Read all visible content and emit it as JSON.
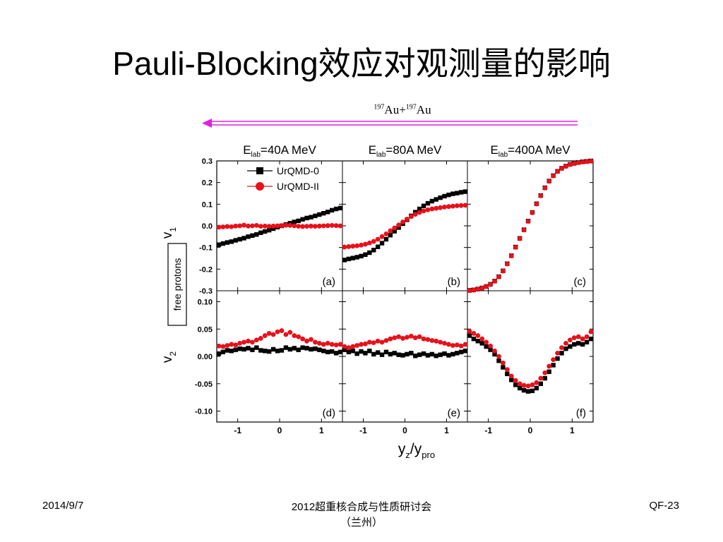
{
  "slide": {
    "title": "Pauli-Blocking效应对观测量的影响",
    "reaction": {
      "a1": "197",
      "n1": "Au",
      "plus": "+",
      "a2": "197",
      "n2": "Au"
    },
    "footer_left": "2014/9/7",
    "footer_center_line1": "2012超重核合成与性质研讨会",
    "footer_center_line2": "（兰州）",
    "footer_right": "QF-23"
  },
  "colors": {
    "urqmd_0": "#000000",
    "urqmd_ii": "#e8101a",
    "arrow": "#e020e0"
  },
  "chart_data": {
    "type": "scatter",
    "column_titles": [
      {
        "pre": "E",
        "sub": "lab",
        "post": "=40A MeV"
      },
      {
        "pre": "E",
        "sub": "lab",
        "post": "=80A MeV"
      },
      {
        "pre": "E",
        "sub": "lab",
        "post": "=400A MeV"
      }
    ],
    "xlabel": {
      "main": "y",
      "sub1": "z",
      "mid": "/y",
      "sub2": "pro"
    },
    "ylabel_top": {
      "main": "v",
      "sub": "1"
    },
    "ylabel_bottom": {
      "main": "v",
      "sub": "2"
    },
    "side_label": "free protons",
    "legend": [
      "UrQMD-0",
      "UrQMD-II"
    ],
    "xlim": [
      -1.5,
      1.5
    ],
    "xticks": [
      "-1",
      "0",
      "1"
    ],
    "xtick_values": [
      -1,
      0,
      1
    ],
    "top_ylim": [
      -0.3,
      0.3
    ],
    "top_yticks": [
      "0.3",
      "0.2",
      "0.1",
      "0.0",
      "-0.1",
      "-0.2",
      "-0.3"
    ],
    "top_ytick_values": [
      0.3,
      0.2,
      0.1,
      0.0,
      -0.1,
      -0.2,
      -0.3
    ],
    "bottom_ylim": [
      -0.12,
      0.12
    ],
    "bottom_yticks": [
      "0.10",
      "0.05",
      "0.00",
      "-0.05",
      "-0.10"
    ],
    "bottom_ytick_values": [
      0.1,
      0.05,
      0.0,
      -0.05,
      -0.1
    ],
    "x": [
      -1.45,
      -1.35,
      -1.25,
      -1.15,
      -1.05,
      -0.95,
      -0.85,
      -0.75,
      -0.65,
      -0.55,
      -0.45,
      -0.35,
      -0.25,
      -0.15,
      -0.05,
      0.05,
      0.15,
      0.25,
      0.35,
      0.45,
      0.55,
      0.65,
      0.75,
      0.85,
      0.95,
      1.05,
      1.15,
      1.25,
      1.35,
      1.45
    ],
    "panels": [
      {
        "label": "(a)",
        "row": "top",
        "col": 0,
        "series": [
          {
            "name": "UrQMD-0",
            "values": [
              -0.087,
              -0.082,
              -0.077,
              -0.073,
              -0.067,
              -0.062,
              -0.057,
              -0.05,
              -0.045,
              -0.04,
              -0.032,
              -0.026,
              -0.02,
              -0.013,
              -0.006,
              0.0,
              0.006,
              0.012,
              0.018,
              0.023,
              0.03,
              0.036,
              0.04,
              0.046,
              0.052,
              0.058,
              0.064,
              0.072,
              0.078,
              0.082
            ]
          },
          {
            "name": "UrQMD-II",
            "values": [
              -0.006,
              -0.005,
              -0.003,
              -0.004,
              -0.001,
              0.0,
              0.003,
              -0.001,
              0.0,
              0.002,
              -0.002,
              -0.001,
              -0.002,
              -0.001,
              0.0,
              0.001,
              0.003,
              0.002,
              0.0,
              -0.002,
              -0.003,
              -0.002,
              -0.001,
              -0.002,
              -0.001,
              0.0,
              0.001,
              0.002,
              0.001,
              0.0
            ]
          }
        ]
      },
      {
        "label": "(b)",
        "row": "top",
        "col": 1,
        "series": [
          {
            "name": "UrQMD-0",
            "values": [
              -0.158,
              -0.153,
              -0.149,
              -0.145,
              -0.14,
              -0.133,
              -0.124,
              -0.112,
              -0.097,
              -0.08,
              -0.062,
              -0.043,
              -0.025,
              -0.008,
              0.01,
              0.028,
              0.046,
              0.063,
              0.078,
              0.092,
              0.104,
              0.114,
              0.122,
              0.13,
              0.137,
              0.143,
              0.148,
              0.151,
              0.155,
              0.158
            ]
          },
          {
            "name": "UrQMD-II",
            "values": [
              -0.098,
              -0.096,
              -0.094,
              -0.092,
              -0.089,
              -0.085,
              -0.079,
              -0.072,
              -0.062,
              -0.05,
              -0.037,
              -0.023,
              -0.01,
              0.004,
              0.018,
              0.031,
              0.043,
              0.053,
              0.062,
              0.069,
              0.074,
              0.078,
              0.081,
              0.084,
              0.087,
              0.089,
              0.091,
              0.093,
              0.094,
              0.095
            ]
          }
        ]
      },
      {
        "label": "(c)",
        "row": "top",
        "col": 2,
        "series": [
          {
            "name": "UrQMD-0",
            "values": [
              -0.298,
              -0.296,
              -0.292,
              -0.287,
              -0.28,
              -0.27,
              -0.255,
              -0.235,
              -0.208,
              -0.175,
              -0.138,
              -0.098,
              -0.058,
              -0.018,
              0.022,
              0.062,
              0.102,
              0.14,
              0.176,
              0.207,
              0.232,
              0.252,
              0.266,
              0.276,
              0.284,
              0.289,
              0.293,
              0.296,
              0.298,
              0.3
            ]
          },
          {
            "name": "UrQMD-II",
            "values": [
              -0.299,
              -0.297,
              -0.293,
              -0.288,
              -0.281,
              -0.271,
              -0.256,
              -0.236,
              -0.209,
              -0.176,
              -0.139,
              -0.099,
              -0.059,
              -0.019,
              0.021,
              0.061,
              0.101,
              0.139,
              0.175,
              0.206,
              0.231,
              0.251,
              0.265,
              0.275,
              0.283,
              0.288,
              0.292,
              0.295,
              0.297,
              0.299
            ]
          }
        ]
      },
      {
        "label": "(d)",
        "row": "bottom",
        "col": 0,
        "series": [
          {
            "name": "UrQMD-0",
            "values": [
              0.005,
              0.008,
              0.011,
              0.01,
              0.012,
              0.014,
              0.013,
              0.015,
              0.012,
              0.016,
              0.011,
              0.01,
              0.009,
              0.013,
              0.01,
              0.011,
              0.016,
              0.013,
              0.015,
              0.012,
              0.016,
              0.015,
              0.013,
              0.014,
              0.012,
              0.01,
              0.008,
              0.009,
              0.006,
              0.008
            ]
          },
          {
            "name": "UrQMD-II",
            "values": [
              0.019,
              0.018,
              0.02,
              0.022,
              0.021,
              0.024,
              0.026,
              0.028,
              0.026,
              0.03,
              0.033,
              0.038,
              0.042,
              0.04,
              0.045,
              0.047,
              0.04,
              0.044,
              0.038,
              0.036,
              0.032,
              0.028,
              0.031,
              0.026,
              0.024,
              0.022,
              0.024,
              0.022,
              0.021,
              0.022
            ]
          }
        ]
      },
      {
        "label": "(e)",
        "row": "bottom",
        "col": 1,
        "series": [
          {
            "name": "UrQMD-0",
            "values": [
              0.012,
              0.008,
              0.01,
              0.005,
              0.009,
              0.006,
              0.01,
              0.004,
              0.007,
              0.003,
              0.008,
              0.004,
              0.006,
              0.003,
              0.002,
              0.004,
              0.006,
              0.001,
              0.003,
              0.005,
              0.002,
              0.004,
              0.001,
              0.003,
              0.005,
              0.002,
              0.004,
              0.006,
              0.008,
              0.01
            ]
          },
          {
            "name": "UrQMD-II",
            "values": [
              0.018,
              0.016,
              0.018,
              0.02,
              0.022,
              0.023,
              0.026,
              0.025,
              0.028,
              0.026,
              0.029,
              0.032,
              0.034,
              0.036,
              0.033,
              0.035,
              0.037,
              0.034,
              0.036,
              0.032,
              0.031,
              0.029,
              0.028,
              0.026,
              0.024,
              0.022,
              0.02,
              0.021,
              0.019,
              0.022
            ]
          }
        ]
      },
      {
        "label": "(f)",
        "row": "bottom",
        "col": 2,
        "series": [
          {
            "name": "UrQMD-0",
            "values": [
              0.038,
              0.032,
              0.028,
              0.024,
              0.018,
              0.012,
              0.004,
              -0.008,
              -0.02,
              -0.032,
              -0.043,
              -0.052,
              -0.058,
              -0.062,
              -0.064,
              -0.063,
              -0.058,
              -0.05,
              -0.04,
              -0.028,
              -0.016,
              -0.004,
              0.006,
              0.014,
              0.018,
              0.022,
              0.024,
              0.022,
              0.026,
              0.032
            ]
          },
          {
            "name": "UrQMD-II",
            "values": [
              0.046,
              0.042,
              0.038,
              0.032,
              0.026,
              0.019,
              0.01,
              0.0,
              -0.012,
              -0.024,
              -0.036,
              -0.044,
              -0.05,
              -0.053,
              -0.054,
              -0.052,
              -0.048,
              -0.04,
              -0.03,
              -0.018,
              -0.006,
              0.006,
              0.016,
              0.024,
              0.03,
              0.034,
              0.036,
              0.032,
              0.036,
              0.045
            ]
          }
        ]
      }
    ]
  }
}
